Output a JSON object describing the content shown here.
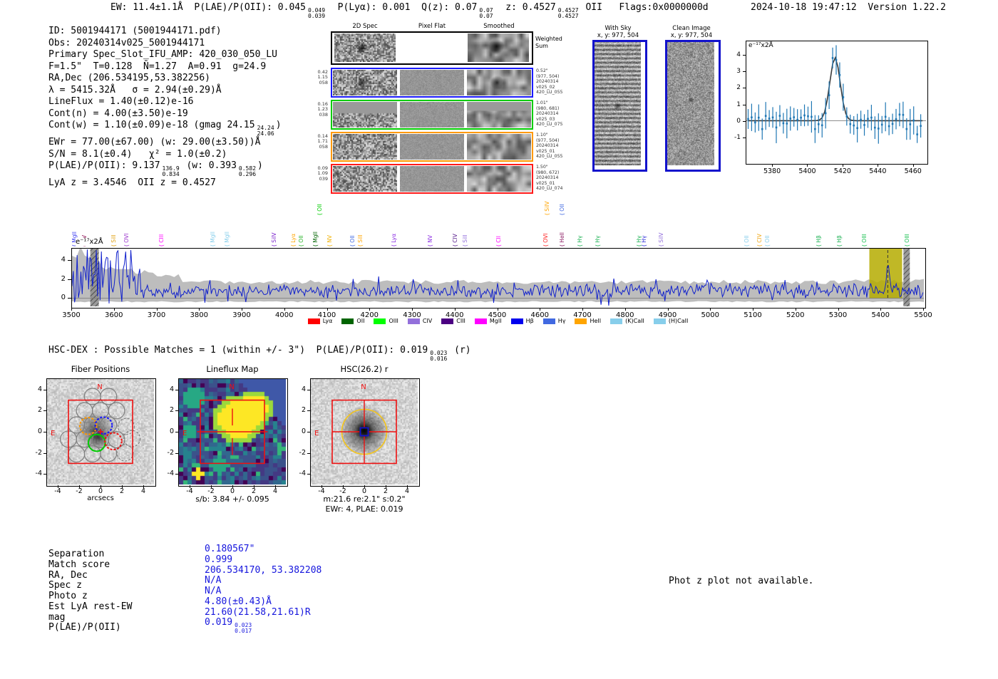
{
  "meta": {
    "line": "2024-10-18 19:47:12  Version 1.22.2"
  },
  "header": {
    "segments": [
      "EW: 11.4±1.1Å  P(LAE)/P(OII): 0.045",
      {
        "hi": "0.049",
        "lo": "0.039"
      },
      "  P(Lyα): 0.001  Q(z): 0.07",
      {
        "hi": "0.07",
        "lo": "0.07"
      },
      "  z: 0.4527",
      {
        "hi": "0.4527",
        "lo": "0.4527"
      },
      " OII   Flags:0x0000000d"
    ]
  },
  "info": {
    "lines": [
      [
        "ID: 5001944171 (5001944171.pdf)"
      ],
      [
        "Obs: 20240314v025_5001944171"
      ],
      [
        "Primary Spec_Slot_IFU_AMP: 420_030_050_LU"
      ],
      [
        "F=1.5\"  T=0.128  N̄=1.27  A=0.91  g=24.9"
      ],
      [
        "RA,Dec (206.534195,53.382256)"
      ],
      [
        "λ = 5415.32Å   σ = 2.94(±0.29)Å"
      ],
      [
        "LineFlux = 1.40(±0.12)e-16"
      ],
      [
        "Cont(n) = 4.00(±3.50)e-19"
      ],
      [
        "Cont(w) = 1.10(±0.09)e-18 (gmag 24.15",
        {
          "hi": "24.24",
          "lo": "24.06"
        },
        ")"
      ],
      [
        "EWr = 77.00(±67.00) (w: 29.00(±3.50))Å"
      ],
      [
        "S/N = 8.1(±0.4)   χ² = 1.0(±0.2)"
      ],
      [
        "P(LAE)/P(OII): 9.137",
        {
          "hi": "136.9",
          "lo": "0.834"
        },
        " (w: 0.393",
        {
          "hi": "0.582",
          "lo": "0.296"
        },
        ")"
      ],
      [
        "LyA z = 3.4546  OII z = 0.4527"
      ]
    ]
  },
  "spec2d": {
    "col_headers": [
      "2D Spec",
      "Pixel Flat",
      "Smoothed"
    ],
    "weighted": {
      "border": "#000000",
      "label_lines": [
        "Weighted",
        "Sum"
      ]
    },
    "rows": [
      {
        "border": "#1a1aff",
        "left": [
          "0.42",
          "1.15",
          "058"
        ],
        "right": [
          "0.52\"",
          "(977, 504)",
          "20240314",
          "v025_02",
          "420_LU_055"
        ]
      },
      {
        "border": "#00cc00",
        "left": [
          "0.16",
          "1.23",
          "038"
        ],
        "right": [
          "1.01\"",
          "(980, 681)",
          "20240314",
          "v025_03",
          "420_LU_075"
        ]
      },
      {
        "border": "#ff9900",
        "left": [
          "0.14",
          "1.71",
          "058"
        ],
        "right": [
          "1.10\"",
          "(977, 504)",
          "20240314",
          "v025_01",
          "420_LU_055"
        ]
      },
      {
        "border": "#ff1a1a",
        "left": [
          "0.09",
          "1.09",
          "039"
        ],
        "right": [
          "1.50\"",
          "(980, 672)",
          "20240314",
          "v025_01",
          "420_LU_074"
        ]
      }
    ]
  },
  "sky_panels": {
    "with_sky": {
      "title": "With Sky",
      "subtitle": "x, y: 977, 504",
      "border": "#1212cc"
    },
    "clean": {
      "title": "Clean Image",
      "subtitle": "x, y: 977, 504",
      "border": "#1212cc"
    }
  },
  "zoom_plot": {
    "unit_label": "e⁻¹⁷x2Å",
    "xticks": [
      5380,
      5400,
      5420,
      5440,
      5460
    ],
    "yticks": [
      4,
      3,
      2,
      1,
      0,
      -1
    ]
  },
  "main_plot": {
    "unit_label": "e⁻¹⁷x2Å",
    "xticks": [
      3500,
      3600,
      3700,
      3800,
      3900,
      4000,
      4100,
      4200,
      4300,
      4400,
      4500,
      4600,
      4700,
      4800,
      4900,
      5000,
      5100,
      5200,
      5300,
      5400,
      5500
    ],
    "yticks": [
      4,
      2,
      0
    ],
    "legend": [
      {
        "label": "Lyα",
        "color": "#ff0000"
      },
      {
        "label": "OII",
        "color": "#006400"
      },
      {
        "label": "OIII",
        "color": "#00ff00"
      },
      {
        "label": "CIV",
        "color": "#9370db"
      },
      {
        "label": "CIII",
        "color": "#4b0082"
      },
      {
        "label": "MgII",
        "color": "#ff00ff"
      },
      {
        "label": "Hβ",
        "color": "#0000ee"
      },
      {
        "label": "Hγ",
        "color": "#4169e1"
      },
      {
        "label": "HeII",
        "color": "#ffa500"
      },
      {
        "label": "(K)CaII",
        "color": "#87ceeb"
      },
      {
        "label": "(H)CaII",
        "color": "#87ceeb"
      }
    ],
    "emission_labels": [
      {
        "wl": 3505,
        "text": "MgII",
        "color": "#3a3af0",
        "row": 0
      },
      {
        "wl": 3528,
        "text": "NV",
        "color": "#8b0a50",
        "row": 0
      },
      {
        "wl": 3597,
        "text": "SiII",
        "color": "#e0a010",
        "row": 0
      },
      {
        "wl": 3628,
        "text": "OVI",
        "color": "#9932cc",
        "row": 0
      },
      {
        "wl": 3709,
        "text": "CIII",
        "color": "#ff00ff",
        "row": 0
      },
      {
        "wl": 3830,
        "text": "MgII",
        "color": "#87ceeb",
        "row": 0
      },
      {
        "wl": 3864,
        "text": "MgII",
        "color": "#87ceeb",
        "row": 0
      },
      {
        "wl": 3973,
        "text": "SiIV",
        "color": "#7d26cd",
        "row": 0
      },
      {
        "wl": 4018,
        "text": "Lyα",
        "color": "#ffa500",
        "row": 0
      },
      {
        "wl": 4038,
        "text": "OII",
        "color": "#2db52d",
        "row": 0
      },
      {
        "wl": 4070,
        "text": "MgII",
        "color": "#006400",
        "row": 0
      },
      {
        "wl": 4080,
        "text": "OII",
        "color": "#00cc00",
        "row": 1
      },
      {
        "wl": 4105,
        "text": "NV",
        "color": "#f0b000",
        "row": 0
      },
      {
        "wl": 4158,
        "text": "OII",
        "color": "#4169e1",
        "row": 0
      },
      {
        "wl": 4176,
        "text": "SiII",
        "color": "#ffa500",
        "row": 0
      },
      {
        "wl": 4255,
        "text": "Lyα",
        "color": "#8a2be2",
        "row": 0
      },
      {
        "wl": 4341,
        "text": "NV",
        "color": "#8a2be2",
        "row": 0
      },
      {
        "wl": 4399,
        "text": "CIV",
        "color": "#551a8b",
        "row": 0
      },
      {
        "wl": 4423,
        "text": "SiII",
        "color": "#9370db",
        "row": 0
      },
      {
        "wl": 4501,
        "text": "CII",
        "color": "#ff00ff",
        "row": 0
      },
      {
        "wl": 4612,
        "text": "OVI",
        "color": "#ff2020",
        "row": 0
      },
      {
        "wl": 4614,
        "text": "SiIV",
        "color": "#ffa500",
        "row": 1
      },
      {
        "wl": 4650,
        "text": "HeII",
        "color": "#8b1a62",
        "row": 0
      },
      {
        "wl": 4650,
        "text": "OII",
        "color": "#4169e1",
        "row": 1
      },
      {
        "wl": 4692,
        "text": "Hγ",
        "color": "#18b050",
        "row": 0
      },
      {
        "wl": 4734,
        "text": "Hγ",
        "color": "#18b050",
        "row": 0
      },
      {
        "wl": 4831,
        "text": "Hγ",
        "color": "#18b050",
        "row": 0
      },
      {
        "wl": 4842,
        "text": "Hγ",
        "color": "#2f2fd8",
        "row": 0
      },
      {
        "wl": 4883,
        "text": "SiIV",
        "color": "#9370db",
        "row": 0
      },
      {
        "wl": 5084,
        "text": "OII",
        "color": "#87ceeb",
        "row": 0
      },
      {
        "wl": 5114,
        "text": "CIV",
        "color": "#f0a818",
        "row": 0
      },
      {
        "wl": 5132,
        "text": "OII",
        "color": "#87ceeb",
        "row": 0
      },
      {
        "wl": 5253,
        "text": "Hβ",
        "color": "#18b050",
        "row": 0
      },
      {
        "wl": 5301,
        "text": "Hβ",
        "color": "#18b050",
        "row": 0
      },
      {
        "wl": 5360,
        "text": "OIII",
        "color": "#18c050",
        "row": 0
      },
      {
        "wl": 5460,
        "text": "OIII",
        "color": "#18c050",
        "row": 0
      }
    ]
  },
  "hsc_line": {
    "segments": [
      "HSC-DEX : Possible Matches = 1 (within +/- 3\")  P(LAE)/P(OII): 0.019",
      {
        "hi": "0.023",
        "lo": "0.016"
      },
      " (r)"
    ]
  },
  "cutouts": {
    "axis_xticks": [
      -4,
      -2,
      0,
      2,
      4
    ],
    "axis_yticks": [
      4,
      2,
      0,
      -2,
      -4
    ],
    "fiber": {
      "title": "Fiber Positions",
      "xlabel": "arcsecs",
      "north": "N",
      "east": "E"
    },
    "lineflux": {
      "title": "Lineflux Map",
      "xlabel": "s/b: 3.84 +/- 0.095",
      "north": "N",
      "east": "E"
    },
    "hsc": {
      "title": "HSC(26.2) r",
      "xlabel": "m:21.6  re:2.1\"  s:0.2\"",
      "xlabel2": "EWr: 4, PLAE: 0.019",
      "north": "N",
      "east": "E"
    }
  },
  "match_table": {
    "rows": [
      {
        "label": "Separation",
        "value": [
          "0.180567\""
        ]
      },
      {
        "label": "Match score",
        "value": [
          "0.999"
        ]
      },
      {
        "label": "RA, Dec",
        "value": [
          "206.534170, 53.382208"
        ]
      },
      {
        "label": "Spec z",
        "value": [
          "N/A"
        ]
      },
      {
        "label": "Photo z",
        "value": [
          "N/A"
        ]
      },
      {
        "label": "Est LyA rest-EW",
        "value": [
          "4.80(±0.43)Å"
        ]
      },
      {
        "label": "mag",
        "value": [
          "21.60(21.58,21.61)R"
        ]
      },
      {
        "label": "P(LAE)/P(OII)",
        "value": [
          "0.019",
          {
            "hi": "0.023",
            "lo": "0.017"
          }
        ]
      }
    ]
  },
  "photz_note": "Phot z plot not available.",
  "chart_data": [
    {
      "type": "line",
      "name": "emission_line_zoom",
      "ylabel_unit": "e⁻¹⁷x2Å",
      "xlim": [
        5365,
        5467
      ],
      "ylim": [
        -2.0,
        4.6
      ],
      "xticks": [
        5380,
        5400,
        5420,
        5440,
        5460
      ],
      "yticks": [
        -1,
        0,
        1,
        2,
        3,
        4
      ],
      "gaussian_fit": {
        "center": 5415.32,
        "sigma": 2.94,
        "amplitude": 3.8,
        "baseline": 0.07,
        "color": "#3a3a3a"
      },
      "errorbar_series": {
        "color": "#1f77b4",
        "x_start": 5366,
        "x_end": 5464,
        "x_step": 2,
        "typical_error": 0.7,
        "baseline_scatter": 0.45
      },
      "grid": false
    },
    {
      "type": "line",
      "name": "full_spectrum",
      "ylabel_unit": "e⁻¹⁷x2Å",
      "xlim": [
        3500,
        5500
      ],
      "ylim": [
        -0.9,
        5.4
      ],
      "xticks": [
        3500,
        3600,
        3700,
        3800,
        3900,
        4000,
        4100,
        4200,
        4300,
        4400,
        4500,
        4600,
        4700,
        4800,
        4900,
        5000,
        5100,
        5200,
        5300,
        5400,
        5500
      ],
      "yticks": [
        0,
        2,
        4
      ],
      "line_color": "#1020cc",
      "noise_band_color": "#bdbdbd",
      "emission_peak": {
        "center": 5415.32,
        "amplitude": 2.6,
        "sigma": 3.0
      },
      "high_noise_region": [
        3500,
        3660
      ],
      "masked_regions": [
        [
          3543,
          3563
        ],
        [
          5452,
          5467
        ]
      ],
      "highlight_region": {
        "range": [
          5372,
          5449
        ],
        "color": "#b5ab00"
      },
      "marker_line": 5415.32,
      "legend_position": "bottom"
    },
    {
      "type": "heatmap",
      "name": "lineflux_map",
      "title": "Lineflux Map",
      "xlabel": "s/b: 3.84 +/- 0.095",
      "xticks": [
        -4,
        -2,
        0,
        2,
        4
      ],
      "yticks": [
        4,
        2,
        0,
        -2,
        -4
      ],
      "colormap": "viridis",
      "peak_location_arcsec": [
        0,
        0.3
      ]
    }
  ]
}
